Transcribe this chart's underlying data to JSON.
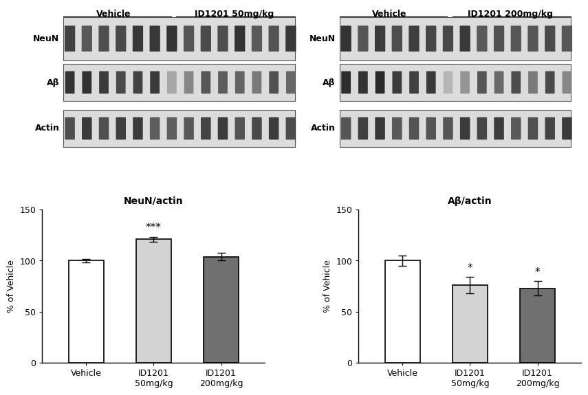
{
  "blot_left_header_vehicle": "Vehicle",
  "blot_left_header_treatment": "ID1201 50mg/kg",
  "blot_right_header_vehicle": "Vehicle",
  "blot_right_header_treatment": "ID1201 200mg/kg",
  "blot_labels": [
    "NeuN",
    "Aβ",
    "Actin"
  ],
  "neun_actin_title": "NeuN/actin",
  "ab_actin_title": "Aβ/actin",
  "ylabel": "% of Vehicle",
  "neun_categories": [
    "Vehicle",
    "ID1201\n50mg/kg",
    "ID1201\n200mg/kg"
  ],
  "neun_values": [
    100,
    121,
    104
  ],
  "neun_errors": [
    1.5,
    2.5,
    3.5
  ],
  "neun_colors": [
    "#ffffff",
    "#d3d3d3",
    "#707070"
  ],
  "neun_significance": [
    "",
    "***",
    ""
  ],
  "ab_categories": [
    "Vehicle",
    "ID1201\n50mg/kg",
    "ID1201\n200mg/kg"
  ],
  "ab_values": [
    100,
    76,
    73
  ],
  "ab_errors": [
    5,
    8,
    7
  ],
  "ab_colors": [
    "#ffffff",
    "#d3d3d3",
    "#707070"
  ],
  "ab_significance": [
    "",
    "*",
    "*"
  ],
  "ylim": [
    0,
    150
  ],
  "yticks": [
    0,
    50,
    100,
    150
  ],
  "bar_edgecolor": "#000000",
  "bar_linewidth": 1.2,
  "sig_fontsize": 11,
  "axis_fontsize": 9,
  "title_fontsize": 10,
  "background_color": "#ffffff"
}
